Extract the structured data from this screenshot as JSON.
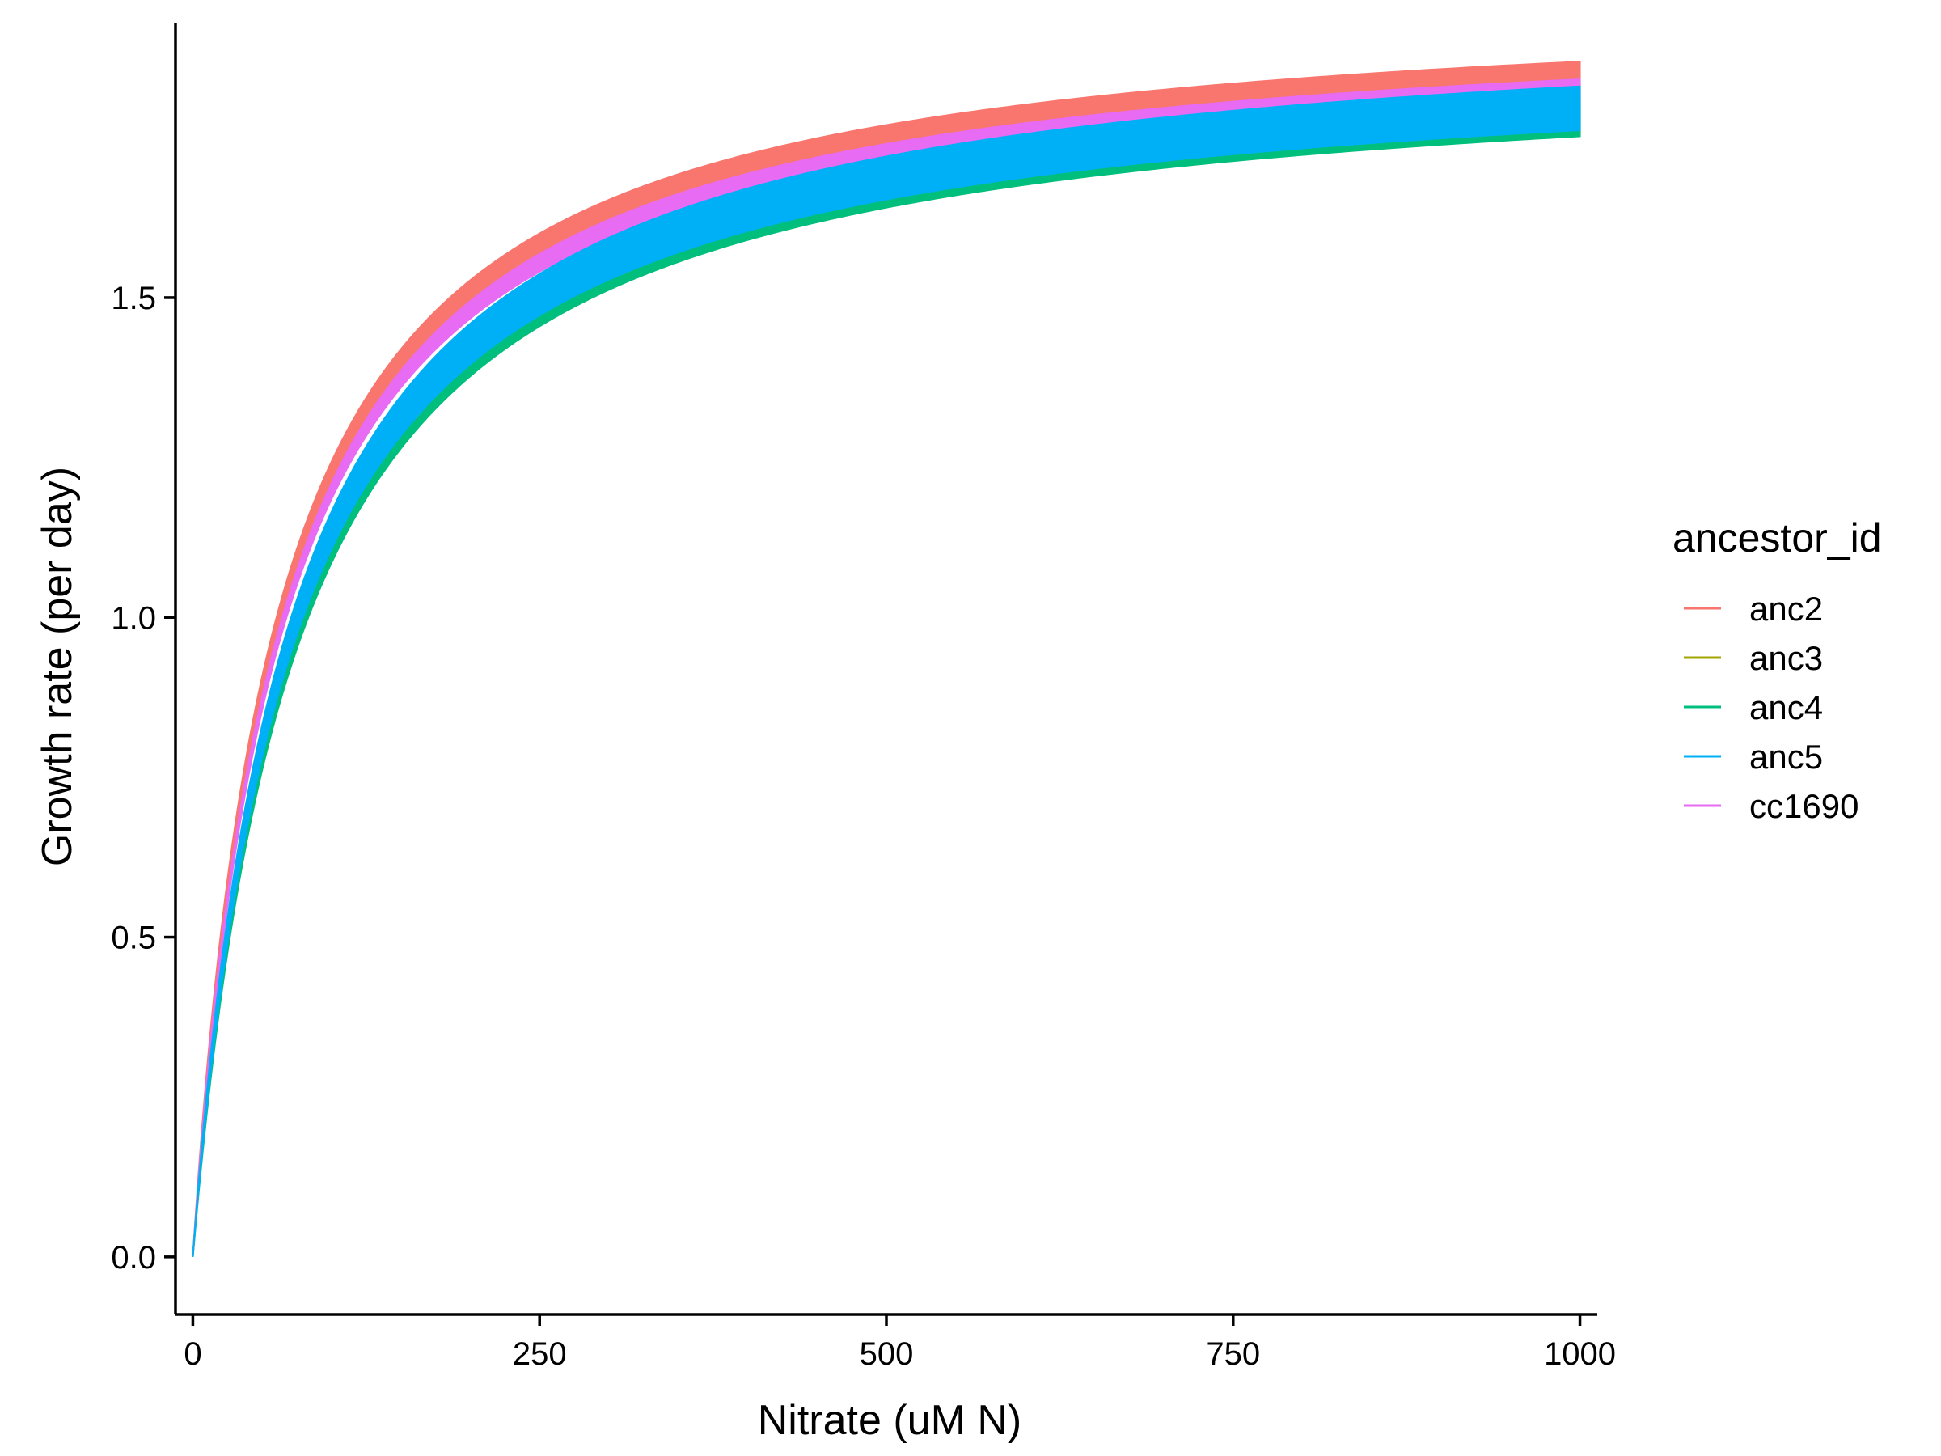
{
  "chart_data": {
    "type": "line",
    "xlabel": "Nitrate (uM N)",
    "ylabel": "Growth rate (per day)",
    "xlim": [
      -12.5,
      1012.5
    ],
    "ylim": [
      -0.09,
      1.93
    ],
    "x_ticks": [
      0,
      250,
      500,
      750,
      1000
    ],
    "x_tick_labels": [
      "0",
      "250",
      "500",
      "750",
      "1000"
    ],
    "y_ticks": [
      0,
      0.5,
      1,
      1.5
    ],
    "y_tick_labels": [
      "0.0",
      "0.5",
      "1.0",
      "1.5"
    ],
    "grid": false,
    "legend_position": "right",
    "legend_title": "ancestor_id",
    "series": [
      {
        "name": "anc2",
        "color": "#F8766D",
        "model": "monod",
        "umax": 1.95,
        "ks": 60,
        "band": 0.03
      },
      {
        "name": "anc3",
        "color": "#A3A500",
        "model": "monod",
        "umax": 1.91,
        "ks": 70,
        "band": 0.025
      },
      {
        "name": "anc4",
        "color": "#00BF7D",
        "model": "monod",
        "umax": 1.91,
        "ks": 72,
        "band": 0.03
      },
      {
        "name": "anc5",
        "color": "#00B0F6",
        "model": "monod",
        "umax": 1.92,
        "ks": 69,
        "band": 0.035
      },
      {
        "name": "cc1690",
        "color": "#E76BF3",
        "model": "monod",
        "umax": 1.94,
        "ks": 62,
        "band": 0.015
      }
    ],
    "draw_order": [
      "anc3",
      "anc4",
      "anc2",
      "cc1690",
      "anc5"
    ]
  }
}
